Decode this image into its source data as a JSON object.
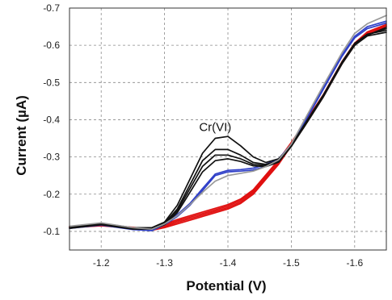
{
  "chart_data": {
    "type": "line",
    "xlabel": "Potential (V)",
    "ylabel": "Current (µA)",
    "xlim": [
      -1.15,
      -1.65
    ],
    "ylim": [
      -0.05,
      -0.7
    ],
    "x_axis_reversed": true,
    "y_axis_reversed": true,
    "grid": true,
    "grid_style": "dashed",
    "xticks": [
      {
        "value": -1.2,
        "label": "-1.2"
      },
      {
        "value": -1.3,
        "label": "-1.3"
      },
      {
        "value": -1.4,
        "label": "-1.4"
      },
      {
        "value": -1.5,
        "label": "-1.5"
      },
      {
        "value": -1.6,
        "label": "-1.6"
      }
    ],
    "yticks": [
      {
        "value": -0.1,
        "label": "-0.1"
      },
      {
        "value": -0.2,
        "label": "-0.2"
      },
      {
        "value": -0.3,
        "label": "-0.3"
      },
      {
        "value": -0.4,
        "label": "-0.4"
      },
      {
        "value": -0.5,
        "label": "-0.5"
      },
      {
        "value": -0.6,
        "label": "-0.6"
      },
      {
        "value": -0.7,
        "label": "-0.7"
      }
    ],
    "annotations": [
      {
        "text": "Cr(VI)",
        "x": -1.38,
        "y": -0.37
      }
    ],
    "series": [
      {
        "color": "#e01010",
        "x": [
          -1.15,
          -1.2,
          -1.25,
          -1.28,
          -1.3,
          -1.32,
          -1.35,
          -1.38,
          -1.4,
          -1.42,
          -1.44,
          -1.46,
          -1.48,
          -1.5,
          -1.52,
          -1.55,
          -1.58,
          -1.6,
          -1.62,
          -1.65
        ],
        "y": [
          -0.11,
          -0.115,
          -0.108,
          -0.103,
          -0.11,
          -0.12,
          -0.135,
          -0.15,
          -0.16,
          -0.175,
          -0.2,
          -0.24,
          -0.28,
          -0.33,
          -0.38,
          -0.46,
          -0.55,
          -0.6,
          -0.63,
          -0.65
        ]
      },
      {
        "color": "#e01010",
        "x": [
          -1.15,
          -1.2,
          -1.25,
          -1.28,
          -1.3,
          -1.32,
          -1.35,
          -1.38,
          -1.4,
          -1.42,
          -1.44,
          -1.46,
          -1.48,
          -1.5,
          -1.52,
          -1.55,
          -1.58,
          -1.6,
          -1.62,
          -1.65
        ],
        "y": [
          -0.111,
          -0.116,
          -0.109,
          -0.104,
          -0.113,
          -0.124,
          -0.139,
          -0.154,
          -0.164,
          -0.179,
          -0.204,
          -0.244,
          -0.284,
          -0.333,
          -0.383,
          -0.462,
          -0.552,
          -0.602,
          -0.632,
          -0.652
        ]
      },
      {
        "color": "#e01010",
        "x": [
          -1.15,
          -1.2,
          -1.25,
          -1.28,
          -1.3,
          -1.32,
          -1.35,
          -1.38,
          -1.4,
          -1.42,
          -1.44,
          -1.46,
          -1.48,
          -1.5,
          -1.52,
          -1.55,
          -1.58,
          -1.6,
          -1.62,
          -1.65
        ],
        "y": [
          -0.112,
          -0.117,
          -0.11,
          -0.105,
          -0.116,
          -0.128,
          -0.143,
          -0.158,
          -0.168,
          -0.183,
          -0.208,
          -0.248,
          -0.288,
          -0.336,
          -0.386,
          -0.464,
          -0.554,
          -0.604,
          -0.634,
          -0.654
        ]
      },
      {
        "color": "#e01010",
        "x": [
          -1.15,
          -1.2,
          -1.25,
          -1.28,
          -1.3,
          -1.32,
          -1.35,
          -1.38,
          -1.4,
          -1.42,
          -1.44,
          -1.46,
          -1.48,
          -1.5,
          -1.52,
          -1.55,
          -1.58,
          -1.6,
          -1.62,
          -1.65
        ],
        "y": [
          -0.113,
          -0.118,
          -0.111,
          -0.106,
          -0.119,
          -0.132,
          -0.147,
          -0.162,
          -0.172,
          -0.187,
          -0.212,
          -0.252,
          -0.292,
          -0.339,
          -0.389,
          -0.466,
          -0.556,
          -0.606,
          -0.636,
          -0.656
        ]
      },
      {
        "color": "#3040c8",
        "x": [
          -1.15,
          -1.2,
          -1.25,
          -1.28,
          -1.3,
          -1.32,
          -1.34,
          -1.36,
          -1.38,
          -1.4,
          -1.42,
          -1.44,
          -1.46,
          -1.48,
          -1.5,
          -1.52,
          -1.55,
          -1.58,
          -1.6,
          -1.62,
          -1.65
        ],
        "y": [
          -0.108,
          -0.117,
          -0.105,
          -0.102,
          -0.118,
          -0.14,
          -0.17,
          -0.21,
          -0.25,
          -0.26,
          -0.262,
          -0.265,
          -0.275,
          -0.29,
          -0.33,
          -0.39,
          -0.48,
          -0.57,
          -0.62,
          -0.645,
          -0.66
        ]
      },
      {
        "color": "#3040c8",
        "x": [
          -1.15,
          -1.2,
          -1.25,
          -1.28,
          -1.3,
          -1.32,
          -1.34,
          -1.36,
          -1.38,
          -1.4,
          -1.42,
          -1.44,
          -1.46,
          -1.48,
          -1.5,
          -1.52,
          -1.55,
          -1.58,
          -1.6,
          -1.62,
          -1.65
        ],
        "y": [
          -0.109,
          -0.118,
          -0.106,
          -0.103,
          -0.121,
          -0.145,
          -0.175,
          -0.215,
          -0.254,
          -0.264,
          -0.266,
          -0.27,
          -0.28,
          -0.295,
          -0.334,
          -0.394,
          -0.484,
          -0.574,
          -0.624,
          -0.65,
          -0.665
        ]
      },
      {
        "color": "#111111",
        "x": [
          -1.15,
          -1.2,
          -1.25,
          -1.28,
          -1.3,
          -1.32,
          -1.34,
          -1.36,
          -1.38,
          -1.4,
          -1.42,
          -1.44,
          -1.46,
          -1.48,
          -1.5,
          -1.52,
          -1.55,
          -1.58,
          -1.6,
          -1.62,
          -1.65
        ],
        "y": [
          -0.112,
          -0.122,
          -0.11,
          -0.11,
          -0.125,
          -0.17,
          -0.24,
          -0.31,
          -0.35,
          -0.355,
          -0.33,
          -0.3,
          -0.285,
          -0.295,
          -0.33,
          -0.38,
          -0.46,
          -0.55,
          -0.6,
          -0.625,
          -0.635
        ]
      },
      {
        "color": "#111111",
        "x": [
          -1.15,
          -1.2,
          -1.25,
          -1.28,
          -1.3,
          -1.32,
          -1.34,
          -1.36,
          -1.38,
          -1.4,
          -1.42,
          -1.44,
          -1.46,
          -1.48,
          -1.5,
          -1.52,
          -1.55,
          -1.58,
          -1.6,
          -1.62,
          -1.65
        ],
        "y": [
          -0.11,
          -0.12,
          -0.108,
          -0.108,
          -0.122,
          -0.16,
          -0.225,
          -0.29,
          -0.32,
          -0.32,
          -0.305,
          -0.285,
          -0.28,
          -0.29,
          -0.332,
          -0.385,
          -0.465,
          -0.555,
          -0.605,
          -0.63,
          -0.64
        ]
      },
      {
        "color": "#111111",
        "x": [
          -1.15,
          -1.2,
          -1.25,
          -1.28,
          -1.3,
          -1.32,
          -1.34,
          -1.36,
          -1.38,
          -1.4,
          -1.42,
          -1.44,
          -1.46,
          -1.48,
          -1.5,
          -1.52,
          -1.55,
          -1.58,
          -1.6,
          -1.62,
          -1.65
        ],
        "y": [
          -0.109,
          -0.119,
          -0.107,
          -0.107,
          -0.12,
          -0.155,
          -0.215,
          -0.275,
          -0.305,
          -0.305,
          -0.295,
          -0.28,
          -0.277,
          -0.288,
          -0.33,
          -0.382,
          -0.462,
          -0.552,
          -0.602,
          -0.628,
          -0.645
        ]
      },
      {
        "color": "#111111",
        "x": [
          -1.15,
          -1.2,
          -1.25,
          -1.28,
          -1.3,
          -1.32,
          -1.34,
          -1.36,
          -1.38,
          -1.4,
          -1.42,
          -1.44,
          -1.46,
          -1.48,
          -1.5,
          -1.52,
          -1.55,
          -1.58,
          -1.6,
          -1.62,
          -1.65
        ],
        "y": [
          -0.108,
          -0.118,
          -0.106,
          -0.106,
          -0.118,
          -0.15,
          -0.205,
          -0.26,
          -0.29,
          -0.295,
          -0.288,
          -0.276,
          -0.274,
          -0.286,
          -0.328,
          -0.38,
          -0.46,
          -0.55,
          -0.6,
          -0.627,
          -0.648
        ]
      },
      {
        "color": "#999999",
        "x": [
          -1.15,
          -1.2,
          -1.25,
          -1.28,
          -1.3,
          -1.32,
          -1.34,
          -1.36,
          -1.38,
          -1.4,
          -1.42,
          -1.44,
          -1.46,
          -1.48,
          -1.5,
          -1.52,
          -1.55,
          -1.58,
          -1.6,
          -1.62,
          -1.65
        ],
        "y": [
          -0.114,
          -0.123,
          -0.11,
          -0.106,
          -0.12,
          -0.142,
          -0.172,
          -0.205,
          -0.235,
          -0.25,
          -0.256,
          -0.262,
          -0.274,
          -0.292,
          -0.335,
          -0.397,
          -0.49,
          -0.58,
          -0.632,
          -0.658,
          -0.68
        ]
      }
    ]
  }
}
